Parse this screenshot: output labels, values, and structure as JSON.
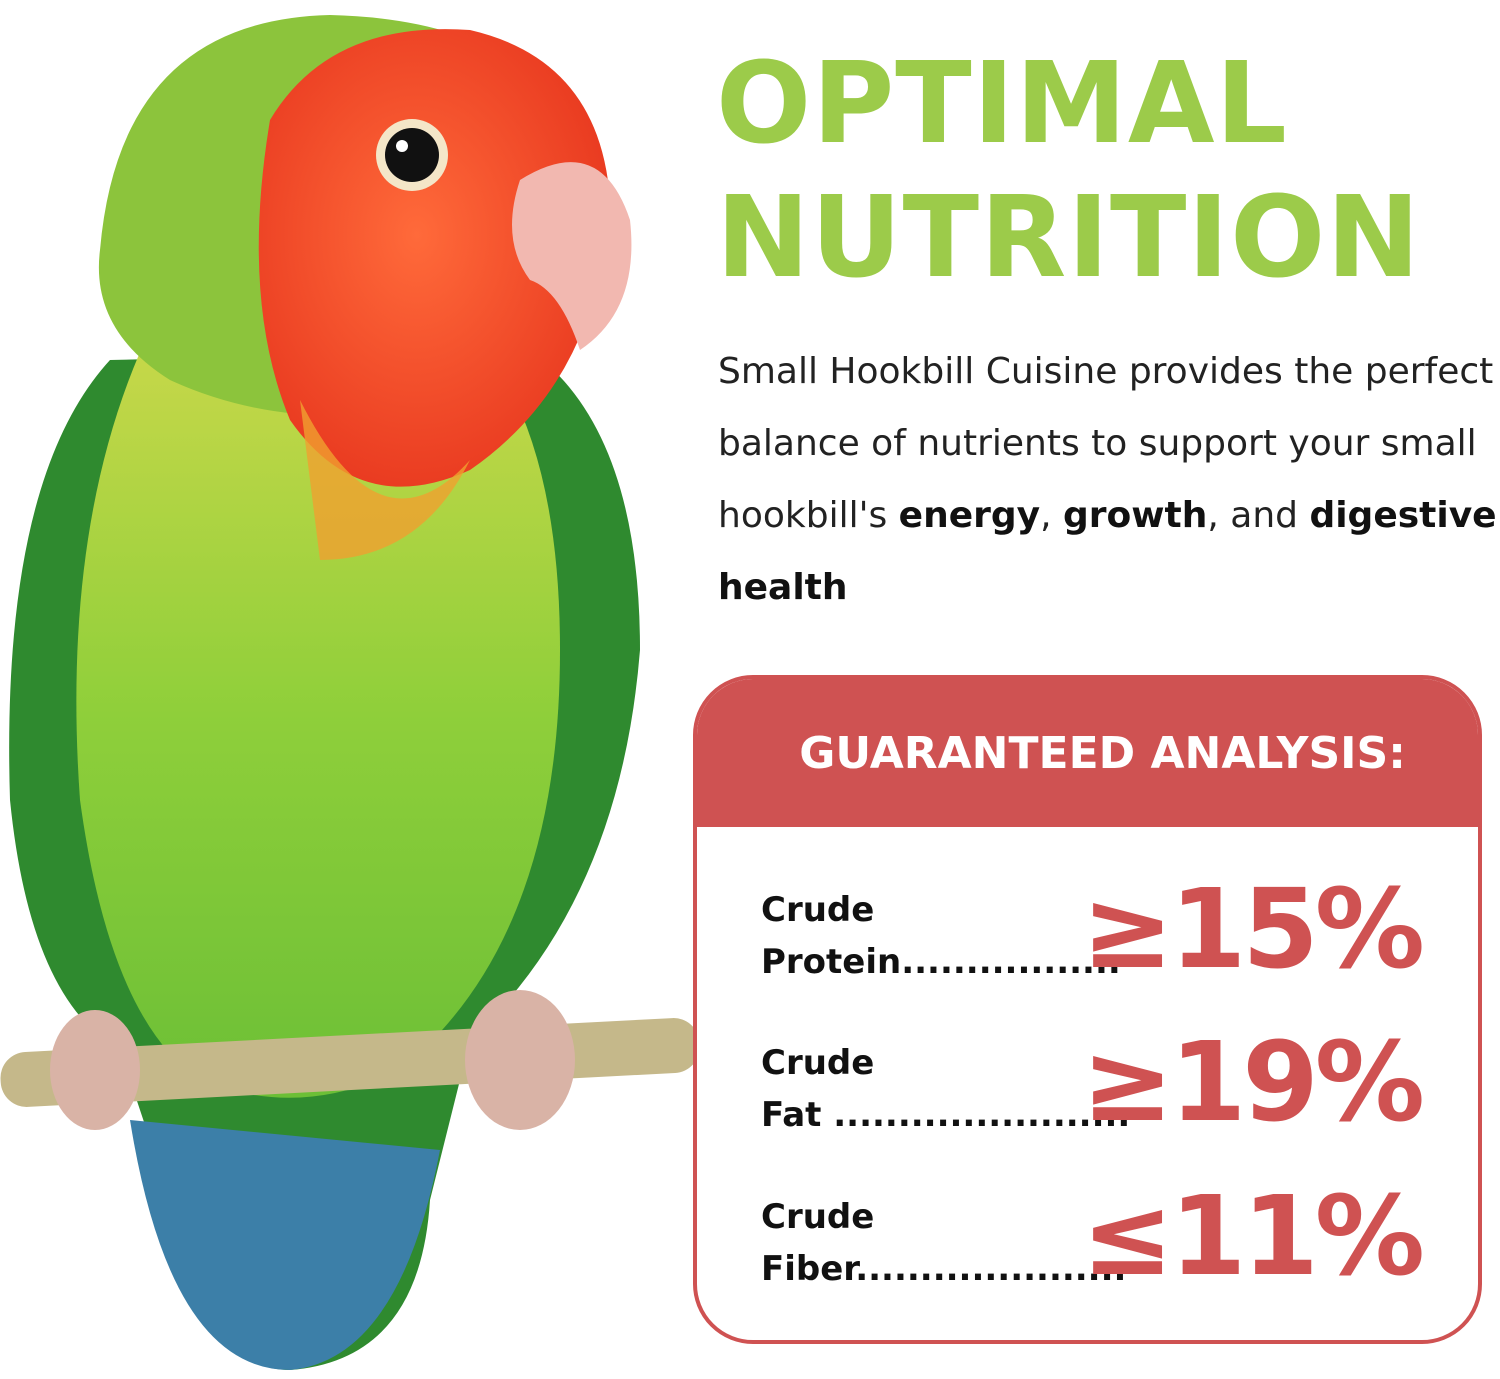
{
  "headline": {
    "line1": "OPTIMAL",
    "line2": "NUTRITION"
  },
  "description": {
    "intro": "Small Hookbill Cuisine provides the perfect balance of nutrients to support your small hookbill's ",
    "bold1": "energy",
    "sep1": ", ",
    "bold2": "growth",
    "sep2": ", and ",
    "bold3": "digestive health"
  },
  "analysis": {
    "title": "GUARANTEED ANALYSIS:",
    "rows": [
      {
        "line1": "Crude",
        "line2": "Protein.................",
        "value": "≥15%"
      },
      {
        "line1": "Crude",
        "line2": "Fat .......................",
        "value": "≥19%"
      },
      {
        "line1": "Crude",
        "line2": "Fiber.....................",
        "value": "≤11%"
      }
    ]
  },
  "colors": {
    "green": "#9ccb4a",
    "red": "#cf5252"
  },
  "image": {
    "subject": "lovebird-on-perch"
  }
}
